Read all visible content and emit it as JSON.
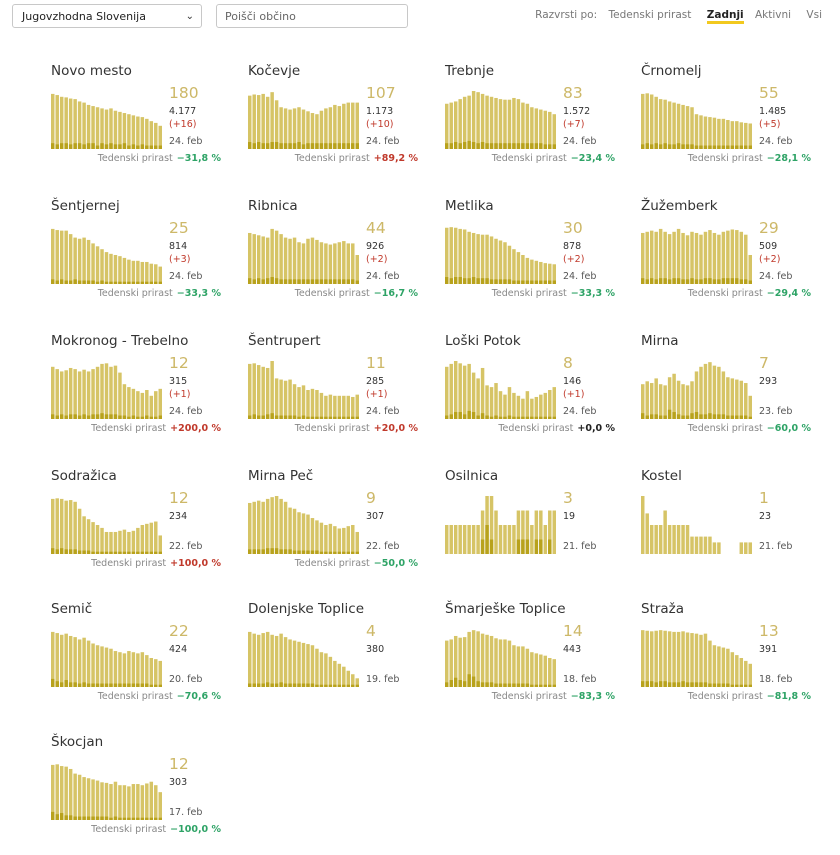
{
  "toolbar": {
    "region_value": "Jugovzhodna Slovenija",
    "search_placeholder": "Poišči občino",
    "sort_label": "Razvrsti po:",
    "sort_options": [
      "Tedenski prirast",
      "Zadnji",
      "Aktivni",
      "Vsi"
    ],
    "sort_active": "Zadnji",
    "accent_color": "#f2c91f"
  },
  "prirast_label": "Tedenski prirast",
  "bar_colors": {
    "light": "#d6c466",
    "dark": "#b8a21c"
  },
  "municipalities": [
    {
      "name": "Novo mesto",
      "active": "180",
      "total": "4.177",
      "change": "(+16)",
      "date": "24. feb",
      "weekly": "−31,8 %",
      "trend": "neg",
      "bars": [
        0.95,
        0.93,
        0.9,
        0.89,
        0.87,
        0.86,
        0.82,
        0.8,
        0.76,
        0.74,
        0.72,
        0.7,
        0.68,
        0.7,
        0.66,
        0.64,
        0.62,
        0.6,
        0.58,
        0.56,
        0.55,
        0.52,
        0.48,
        0.45,
        0.4
      ],
      "dark": [
        0.1,
        0.08,
        0.1,
        0.1,
        0.08,
        0.1,
        0.1,
        0.08,
        0.1,
        0.1,
        0.06,
        0.1,
        0.08,
        0.1,
        0.08,
        0.08,
        0.1,
        0.06,
        0.08,
        0.06,
        0.08,
        0.06,
        0.06,
        0.06,
        0.06
      ]
    },
    {
      "name": "Kočevje",
      "active": "107",
      "total": "1.173",
      "change": "(+10)",
      "date": "24. feb",
      "weekly": "+89,2 %",
      "trend": "pos",
      "bars": [
        0.92,
        0.94,
        0.93,
        0.95,
        0.9,
        0.98,
        0.84,
        0.72,
        0.7,
        0.68,
        0.7,
        0.72,
        0.68,
        0.65,
        0.62,
        0.6,
        0.66,
        0.7,
        0.72,
        0.76,
        0.74,
        0.78,
        0.8,
        0.8,
        0.8
      ],
      "dark": [
        0.12,
        0.1,
        0.12,
        0.1,
        0.1,
        0.12,
        0.12,
        0.1,
        0.1,
        0.1,
        0.1,
        0.12,
        0.08,
        0.1,
        0.1,
        0.1,
        0.1,
        0.1,
        0.1,
        0.1,
        0.1,
        0.1,
        0.1,
        0.1,
        0.1
      ]
    },
    {
      "name": "Trebnje",
      "active": "83",
      "total": "1.572",
      "change": "(+7)",
      "date": "24. feb",
      "weekly": "−23,4 %",
      "trend": "neg",
      "bars": [
        0.78,
        0.8,
        0.82,
        0.86,
        0.9,
        0.92,
        1.0,
        0.98,
        0.95,
        0.92,
        0.9,
        0.88,
        0.86,
        0.85,
        0.85,
        0.88,
        0.86,
        0.8,
        0.78,
        0.72,
        0.7,
        0.68,
        0.66,
        0.64,
        0.6
      ],
      "dark": [
        0.1,
        0.1,
        0.12,
        0.1,
        0.12,
        0.14,
        0.12,
        0.1,
        0.12,
        0.1,
        0.1,
        0.1,
        0.1,
        0.1,
        0.1,
        0.1,
        0.1,
        0.1,
        0.1,
        0.1,
        0.1,
        0.1,
        0.08,
        0.08,
        0.08
      ]
    },
    {
      "name": "Črnomelj",
      "active": "55",
      "total": "1.485",
      "change": "(+5)",
      "date": "24. feb",
      "weekly": "−28,1 %",
      "trend": "neg",
      "bars": [
        0.95,
        0.96,
        0.94,
        0.9,
        0.86,
        0.85,
        0.82,
        0.8,
        0.78,
        0.76,
        0.74,
        0.72,
        0.6,
        0.58,
        0.56,
        0.55,
        0.54,
        0.52,
        0.52,
        0.5,
        0.48,
        0.48,
        0.46,
        0.45,
        0.44
      ],
      "dark": [
        0.08,
        0.1,
        0.08,
        0.1,
        0.08,
        0.1,
        0.08,
        0.08,
        0.1,
        0.08,
        0.08,
        0.08,
        0.06,
        0.06,
        0.06,
        0.06,
        0.06,
        0.06,
        0.06,
        0.06,
        0.06,
        0.06,
        0.06,
        0.06,
        0.06
      ]
    },
    {
      "name": "Šentjernej",
      "active": "25",
      "total": "814",
      "change": "(+3)",
      "date": "24. feb",
      "weekly": "−33,3 %",
      "trend": "neg",
      "bars": [
        0.95,
        0.93,
        0.92,
        0.92,
        0.86,
        0.8,
        0.78,
        0.8,
        0.76,
        0.7,
        0.65,
        0.6,
        0.55,
        0.52,
        0.5,
        0.48,
        0.45,
        0.42,
        0.4,
        0.4,
        0.38,
        0.38,
        0.35,
        0.34,
        0.3
      ],
      "dark": [
        0.08,
        0.06,
        0.08,
        0.06,
        0.06,
        0.08,
        0.06,
        0.06,
        0.06,
        0.06,
        0.04,
        0.06,
        0.04,
        0.04,
        0.04,
        0.04,
        0.04,
        0.04,
        0.04,
        0.04,
        0.04,
        0.04,
        0.04,
        0.04,
        0.04
      ]
    },
    {
      "name": "Ribnica",
      "active": "44",
      "total": "926",
      "change": "(+2)",
      "date": "24. feb",
      "weekly": "−16,7 %",
      "trend": "neg",
      "bars": [
        0.88,
        0.86,
        0.84,
        0.82,
        0.8,
        0.95,
        0.92,
        0.86,
        0.8,
        0.78,
        0.8,
        0.72,
        0.7,
        0.78,
        0.8,
        0.76,
        0.72,
        0.7,
        0.68,
        0.7,
        0.72,
        0.74,
        0.7,
        0.7,
        0.5
      ],
      "dark": [
        0.1,
        0.08,
        0.1,
        0.08,
        0.1,
        0.12,
        0.1,
        0.08,
        0.08,
        0.08,
        0.08,
        0.08,
        0.08,
        0.08,
        0.08,
        0.08,
        0.08,
        0.08,
        0.08,
        0.08,
        0.08,
        0.08,
        0.08,
        0.08,
        0.06
      ]
    },
    {
      "name": "Metlika",
      "active": "30",
      "total": "878",
      "change": "(+2)",
      "date": "24. feb",
      "weekly": "−33,3 %",
      "trend": "neg",
      "bars": [
        0.97,
        0.98,
        0.97,
        0.95,
        0.94,
        0.9,
        0.88,
        0.86,
        0.85,
        0.85,
        0.82,
        0.78,
        0.75,
        0.72,
        0.66,
        0.6,
        0.55,
        0.5,
        0.45,
        0.42,
        0.4,
        0.38,
        0.36,
        0.35,
        0.34
      ],
      "dark": [
        0.12,
        0.1,
        0.12,
        0.12,
        0.1,
        0.1,
        0.12,
        0.1,
        0.1,
        0.1,
        0.08,
        0.08,
        0.08,
        0.08,
        0.08,
        0.06,
        0.06,
        0.06,
        0.06,
        0.06,
        0.06,
        0.06,
        0.06,
        0.06,
        0.06
      ]
    },
    {
      "name": "Žužemberk",
      "active": "29",
      "total": "509",
      "change": "(+2)",
      "date": "24. feb",
      "weekly": "−29,4 %",
      "trend": "neg",
      "bars": [
        0.88,
        0.9,
        0.92,
        0.9,
        0.95,
        0.9,
        0.86,
        0.9,
        0.95,
        0.88,
        0.84,
        0.9,
        0.88,
        0.85,
        0.9,
        0.93,
        0.88,
        0.85,
        0.9,
        0.92,
        0.94,
        0.93,
        0.9,
        0.85,
        0.5
      ],
      "dark": [
        0.1,
        0.08,
        0.1,
        0.08,
        0.1,
        0.1,
        0.08,
        0.1,
        0.1,
        0.08,
        0.08,
        0.1,
        0.08,
        0.08,
        0.1,
        0.1,
        0.08,
        0.08,
        0.1,
        0.1,
        0.1,
        0.1,
        0.08,
        0.08,
        0.06
      ]
    },
    {
      "name": "Mokronog - Trebelno",
      "active": "12",
      "total": "315",
      "change": "(+1)",
      "date": "24. feb",
      "weekly": "+200,0 %",
      "trend": "pos",
      "bars": [
        0.9,
        0.86,
        0.82,
        0.84,
        0.88,
        0.86,
        0.82,
        0.85,
        0.82,
        0.86,
        0.9,
        0.95,
        0.96,
        0.9,
        0.92,
        0.8,
        0.6,
        0.55,
        0.52,
        0.48,
        0.45,
        0.5,
        0.4,
        0.48,
        0.52
      ],
      "dark": [
        0.08,
        0.06,
        0.08,
        0.06,
        0.08,
        0.08,
        0.06,
        0.08,
        0.06,
        0.08,
        0.08,
        0.1,
        0.08,
        0.08,
        0.08,
        0.06,
        0.06,
        0.04,
        0.06,
        0.04,
        0.04,
        0.06,
        0.04,
        0.04,
        0.06
      ]
    },
    {
      "name": "Šentrupert",
      "active": "11",
      "total": "285",
      "change": "(+1)",
      "date": "24. feb",
      "weekly": "+20,0 %",
      "trend": "pos",
      "bars": [
        0.95,
        0.96,
        0.93,
        0.9,
        0.88,
        1.0,
        0.7,
        0.68,
        0.66,
        0.68,
        0.6,
        0.55,
        0.58,
        0.5,
        0.52,
        0.5,
        0.45,
        0.4,
        0.42,
        0.4,
        0.4,
        0.4,
        0.4,
        0.38,
        0.42
      ],
      "dark": [
        0.06,
        0.08,
        0.06,
        0.06,
        0.08,
        0.1,
        0.06,
        0.06,
        0.06,
        0.06,
        0.06,
        0.04,
        0.06,
        0.04,
        0.04,
        0.04,
        0.04,
        0.04,
        0.04,
        0.04,
        0.04,
        0.04,
        0.04,
        0.04,
        0.04
      ]
    },
    {
      "name": "Loški Potok",
      "active": "8",
      "total": "146",
      "change": "(+1)",
      "date": "24. feb",
      "weekly": "+0,0 %",
      "trend": "zero",
      "bars": [
        0.9,
        0.95,
        1.0,
        0.96,
        0.92,
        0.95,
        0.8,
        0.7,
        0.88,
        0.58,
        0.55,
        0.62,
        0.48,
        0.42,
        0.55,
        0.45,
        0.4,
        0.35,
        0.48,
        0.35,
        0.38,
        0.42,
        0.45,
        0.5,
        0.55
      ],
      "dark": [
        0.06,
        0.08,
        0.12,
        0.12,
        0.08,
        0.14,
        0.12,
        0.06,
        0.1,
        0.06,
        0.04,
        0.06,
        0.04,
        0.04,
        0.06,
        0.04,
        0.04,
        0.04,
        0.04,
        0.04,
        0.04,
        0.04,
        0.04,
        0.04,
        0.04
      ]
    },
    {
      "name": "Mirna",
      "active": "7",
      "total": "293",
      "change": "",
      "date": "23. feb",
      "weekly": "−60,0 %",
      "trend": "neg",
      "bars": [
        0.6,
        0.65,
        0.62,
        0.7,
        0.6,
        0.58,
        0.72,
        0.78,
        0.66,
        0.6,
        0.58,
        0.65,
        0.82,
        0.9,
        0.95,
        0.98,
        0.92,
        0.9,
        0.82,
        0.72,
        0.7,
        0.68,
        0.66,
        0.62,
        0.4
      ],
      "dark": [
        0.1,
        0.06,
        0.08,
        0.08,
        0.06,
        0.06,
        0.16,
        0.12,
        0.08,
        0.06,
        0.06,
        0.1,
        0.12,
        0.08,
        0.08,
        0.1,
        0.08,
        0.08,
        0.08,
        0.06,
        0.06,
        0.06,
        0.06,
        0.06,
        0.04
      ]
    },
    {
      "name": "Sodražica",
      "active": "12",
      "total": "234",
      "change": "",
      "date": "22. feb",
      "weekly": "+100,0 %",
      "trend": "pos",
      "bars": [
        0.95,
        0.96,
        0.95,
        0.92,
        0.93,
        0.9,
        0.78,
        0.65,
        0.6,
        0.55,
        0.5,
        0.45,
        0.38,
        0.38,
        0.38,
        0.4,
        0.42,
        0.38,
        0.4,
        0.45,
        0.5,
        0.52,
        0.54,
        0.56,
        0.32
      ],
      "dark": [
        0.1,
        0.08,
        0.1,
        0.08,
        0.08,
        0.08,
        0.06,
        0.06,
        0.06,
        0.04,
        0.04,
        0.04,
        0.04,
        0.04,
        0.04,
        0.04,
        0.04,
        0.04,
        0.04,
        0.04,
        0.04,
        0.04,
        0.04,
        0.04,
        0.04
      ]
    },
    {
      "name": "Mirna Peč",
      "active": "9",
      "total": "307",
      "change": "",
      "date": "22. feb",
      "weekly": "−50,0 %",
      "trend": "neg",
      "bars": [
        0.88,
        0.9,
        0.92,
        0.9,
        0.95,
        0.98,
        1.0,
        0.95,
        0.9,
        0.8,
        0.78,
        0.72,
        0.7,
        0.68,
        0.62,
        0.58,
        0.54,
        0.5,
        0.52,
        0.48,
        0.44,
        0.45,
        0.48,
        0.5,
        0.38
      ],
      "dark": [
        0.08,
        0.08,
        0.08,
        0.08,
        0.1,
        0.1,
        0.1,
        0.08,
        0.08,
        0.08,
        0.06,
        0.06,
        0.06,
        0.06,
        0.06,
        0.06,
        0.04,
        0.04,
        0.04,
        0.04,
        0.04,
        0.04,
        0.04,
        0.04,
        0.04
      ]
    },
    {
      "name": "Osilnica",
      "active": "3",
      "total": "19",
      "change": "",
      "date": "21. feb",
      "weekly": "",
      "trend": "zero",
      "bars": [
        0.5,
        0.5,
        0.5,
        0.5,
        0.5,
        0.5,
        0.5,
        0.5,
        0.75,
        1.0,
        1.0,
        0.75,
        0.5,
        0.5,
        0.5,
        0.5,
        0.75,
        0.75,
        0.75,
        0.5,
        0.75,
        0.75,
        0.5,
        0.75,
        0.75
      ],
      "dark": [
        0,
        0,
        0,
        0,
        0,
        0,
        0,
        0,
        0.25,
        0.5,
        0.25,
        0,
        0,
        0,
        0,
        0,
        0.25,
        0.25,
        0.25,
        0,
        0.25,
        0.25,
        0,
        0.25,
        0
      ]
    },
    {
      "name": "Kostel",
      "active": "1",
      "total": "23",
      "change": "",
      "date": "21. feb",
      "weekly": "",
      "trend": "zero",
      "bars": [
        1.0,
        0.7,
        0.5,
        0.5,
        0.5,
        0.75,
        0.5,
        0.5,
        0.5,
        0.5,
        0.5,
        0.3,
        0.3,
        0.3,
        0.3,
        0.3,
        0.2,
        0.2,
        0,
        0,
        0,
        0,
        0.2,
        0.2,
        0.2
      ],
      "dark": [
        0,
        0,
        0,
        0,
        0,
        0,
        0,
        0,
        0,
        0,
        0,
        0,
        0,
        0,
        0,
        0,
        0,
        0,
        0,
        0,
        0,
        0,
        0,
        0,
        0
      ]
    },
    {
      "name": "Semič",
      "active": "22",
      "total": "424",
      "change": "",
      "date": "20. feb",
      "weekly": "−70,6 %",
      "trend": "neg",
      "bars": [
        0.95,
        0.93,
        0.9,
        0.92,
        0.88,
        0.86,
        0.82,
        0.85,
        0.8,
        0.75,
        0.72,
        0.7,
        0.68,
        0.66,
        0.62,
        0.6,
        0.58,
        0.62,
        0.6,
        0.58,
        0.6,
        0.55,
        0.5,
        0.48,
        0.45
      ],
      "dark": [
        0.14,
        0.1,
        0.08,
        0.12,
        0.08,
        0.08,
        0.06,
        0.08,
        0.06,
        0.06,
        0.06,
        0.06,
        0.06,
        0.06,
        0.06,
        0.06,
        0.06,
        0.06,
        0.06,
        0.06,
        0.06,
        0.06,
        0.04,
        0.04,
        0.04
      ]
    },
    {
      "name": "Dolenjske Toplice",
      "active": "4",
      "total": "380",
      "change": "",
      "date": "19. feb",
      "weekly": "",
      "trend": "zero",
      "bars": [
        0.95,
        0.92,
        0.9,
        0.93,
        0.95,
        0.9,
        0.88,
        0.92,
        0.86,
        0.82,
        0.8,
        0.78,
        0.76,
        0.74,
        0.72,
        0.66,
        0.6,
        0.58,
        0.52,
        0.45,
        0.4,
        0.35,
        0.28,
        0.22,
        0.15
      ],
      "dark": [
        0.06,
        0.06,
        0.06,
        0.06,
        0.08,
        0.06,
        0.06,
        0.08,
        0.06,
        0.06,
        0.06,
        0.06,
        0.06,
        0.06,
        0.06,
        0.04,
        0.04,
        0.04,
        0.04,
        0.04,
        0.04,
        0.04,
        0.04,
        0.04,
        0.04
      ]
    },
    {
      "name": "Šmarješke Toplice",
      "active": "14",
      "total": "443",
      "change": "",
      "date": "18. feb",
      "weekly": "−83,3 %",
      "trend": "neg",
      "bars": [
        0.8,
        0.82,
        0.88,
        0.85,
        0.86,
        0.95,
        0.98,
        0.96,
        0.92,
        0.9,
        0.88,
        0.84,
        0.82,
        0.82,
        0.8,
        0.72,
        0.7,
        0.7,
        0.66,
        0.6,
        0.58,
        0.56,
        0.54,
        0.5,
        0.48
      ],
      "dark": [
        0.08,
        0.12,
        0.16,
        0.12,
        0.1,
        0.22,
        0.18,
        0.1,
        0.08,
        0.08,
        0.08,
        0.06,
        0.06,
        0.06,
        0.06,
        0.06,
        0.06,
        0.06,
        0.06,
        0.04,
        0.04,
        0.04,
        0.04,
        0.04,
        0.04
      ]
    },
    {
      "name": "Straža",
      "active": "13",
      "total": "391",
      "change": "",
      "date": "18. feb",
      "weekly": "−81,8 %",
      "trend": "neg",
      "bars": [
        0.98,
        0.97,
        0.96,
        0.97,
        0.98,
        0.97,
        0.96,
        0.95,
        0.95,
        0.96,
        0.94,
        0.93,
        0.92,
        0.9,
        0.92,
        0.8,
        0.72,
        0.7,
        0.68,
        0.66,
        0.6,
        0.55,
        0.5,
        0.45,
        0.4
      ],
      "dark": [
        0.1,
        0.1,
        0.1,
        0.08,
        0.1,
        0.1,
        0.08,
        0.08,
        0.08,
        0.1,
        0.08,
        0.08,
        0.08,
        0.08,
        0.08,
        0.06,
        0.06,
        0.06,
        0.06,
        0.06,
        0.04,
        0.04,
        0.04,
        0.04,
        0.04
      ]
    },
    {
      "name": "Škocjan",
      "active": "12",
      "total": "303",
      "change": "",
      "date": "17. feb",
      "weekly": "−100,0 %",
      "trend": "neg",
      "bars": [
        0.95,
        0.96,
        0.93,
        0.92,
        0.88,
        0.8,
        0.78,
        0.74,
        0.72,
        0.7,
        0.68,
        0.65,
        0.64,
        0.62,
        0.66,
        0.6,
        0.6,
        0.58,
        0.62,
        0.62,
        0.6,
        0.63,
        0.66,
        0.6,
        0.48
      ],
      "dark": [
        0.14,
        0.1,
        0.12,
        0.08,
        0.08,
        0.06,
        0.06,
        0.06,
        0.06,
        0.06,
        0.06,
        0.06,
        0.06,
        0.04,
        0.06,
        0.04,
        0.04,
        0.04,
        0.04,
        0.04,
        0.04,
        0.04,
        0.04,
        0.04,
        0.04
      ]
    }
  ]
}
